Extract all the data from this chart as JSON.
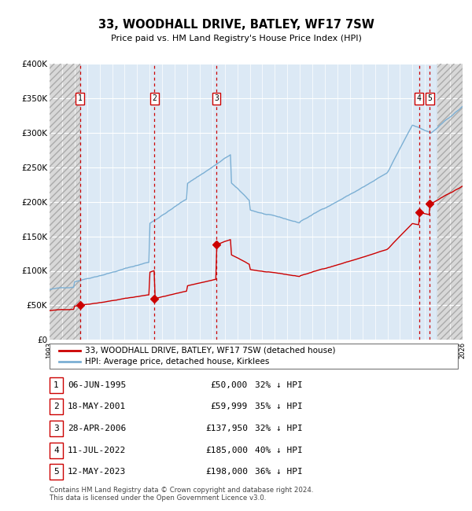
{
  "title": "33, WOODHALL DRIVE, BATLEY, WF17 7SW",
  "subtitle": "Price paid vs. HM Land Registry's House Price Index (HPI)",
  "footer": "Contains HM Land Registry data © Crown copyright and database right 2024.\nThis data is licensed under the Open Government Licence v3.0.",
  "legend_house": "33, WOODHALL DRIVE, BATLEY, WF17 7SW (detached house)",
  "legend_hpi": "HPI: Average price, detached house, Kirklees",
  "ylim": [
    0,
    400000
  ],
  "yticks": [
    0,
    50000,
    100000,
    150000,
    200000,
    250000,
    300000,
    350000,
    400000
  ],
  "ytick_labels": [
    "£0",
    "£50K",
    "£100K",
    "£150K",
    "£200K",
    "£250K",
    "£300K",
    "£350K",
    "£400K"
  ],
  "hpi_color": "#7bafd4",
  "house_color": "#cc0000",
  "bg_color": "#dce9f5",
  "hatch_bg_color": "#e8e8e8",
  "sale_points": [
    {
      "label": "1",
      "date": "06-JUN-1995",
      "price": 50000,
      "x": 1995.44
    },
    {
      "label": "2",
      "date": "18-MAY-2001",
      "price": 59999,
      "x": 2001.38
    },
    {
      "label": "3",
      "date": "28-APR-2006",
      "price": 137950,
      "x": 2006.33
    },
    {
      "label": "4",
      "date": "11-JUL-2022",
      "price": 185000,
      "x": 2022.53
    },
    {
      "label": "5",
      "date": "12-MAY-2023",
      "price": 198000,
      "x": 2023.37
    }
  ],
  "table_rows": [
    [
      "1",
      "06-JUN-1995",
      "£50,000",
      "32% ↓ HPI"
    ],
    [
      "2",
      "18-MAY-2001",
      "£59,999",
      "35% ↓ HPI"
    ],
    [
      "3",
      "28-APR-2006",
      "£137,950",
      "32% ↓ HPI"
    ],
    [
      "4",
      "11-JUL-2022",
      "£185,000",
      "40% ↓ HPI"
    ],
    [
      "5",
      "12-MAY-2023",
      "£198,000",
      "36% ↓ HPI"
    ]
  ],
  "hatch_left_end": 1995.44,
  "hatch_right_start": 2024.0,
  "xmin": 1993,
  "xmax": 2026
}
